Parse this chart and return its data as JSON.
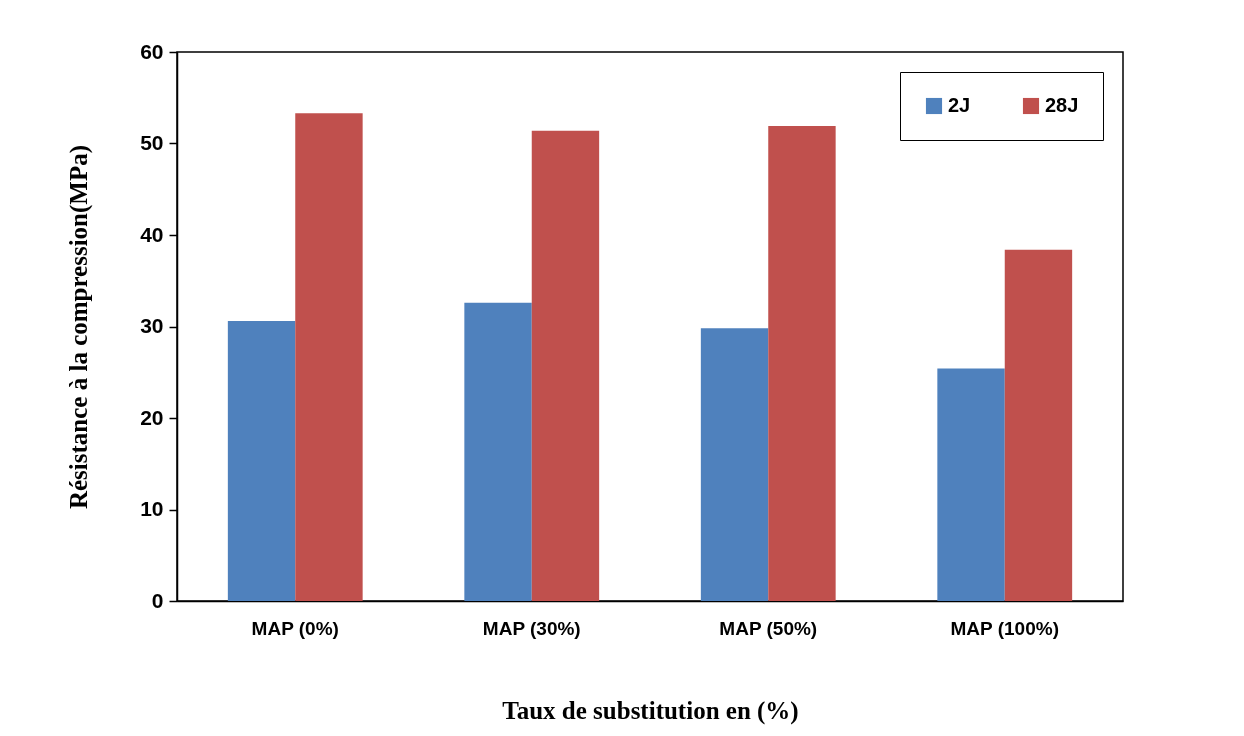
{
  "chart_data": {
    "type": "bar",
    "xlabel": "Taux de substitution en (%)",
    "ylabel": "Résistance à la compression(MPa)",
    "categories": [
      "MAP (0%)",
      "MAP (30%)",
      "MAP (50%)",
      "MAP (100%)"
    ],
    "series": [
      {
        "name": "2J",
        "color": "#4f81bd",
        "values": [
          30.6,
          32.6,
          29.8,
          25.4
        ]
      },
      {
        "name": "28J",
        "color": "#c0504d",
        "values": [
          53.3,
          51.4,
          51.9,
          38.4
        ]
      }
    ],
    "ylim": [
      0,
      60
    ],
    "yticks": [
      0,
      10,
      20,
      30,
      40,
      50,
      60
    ],
    "grid": false,
    "legend": "top right"
  }
}
